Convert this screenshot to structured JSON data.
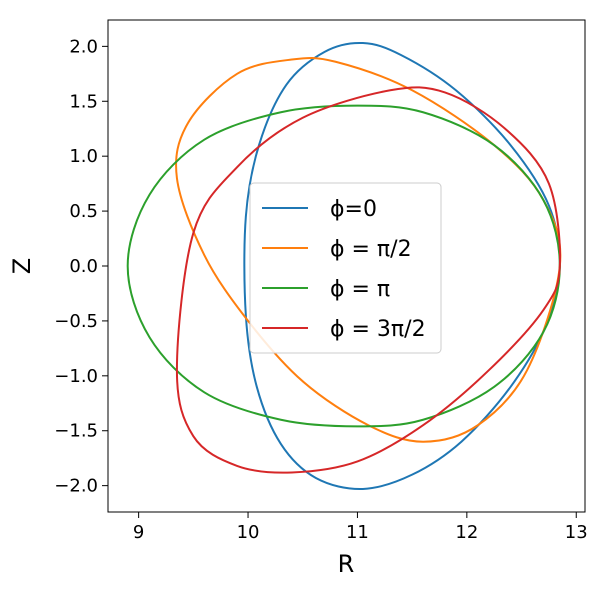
{
  "chart_data": {
    "type": "line",
    "title": "",
    "xlabel": "R",
    "ylabel": "Z",
    "xlim": [
      8.72,
      13.08
    ],
    "ylim": [
      -2.24,
      2.24
    ],
    "xticks": [
      9,
      10,
      11,
      12,
      13
    ],
    "xtick_labels": [
      "9",
      "10",
      "11",
      "12",
      "13"
    ],
    "yticks": [
      -2.0,
      -1.5,
      -1.0,
      -0.5,
      0.0,
      0.5,
      1.0,
      1.5,
      2.0
    ],
    "ytick_labels": [
      "−2.0",
      "−1.5",
      "−1.0",
      "−0.5",
      "0.0",
      "0.5",
      "1.0",
      "1.5",
      "2.0"
    ],
    "grid": false,
    "legend": {
      "position": "center",
      "entries": [
        "ϕ=0",
        "ϕ = π/2",
        "ϕ = π",
        "ϕ = 3π/2"
      ]
    },
    "series": [
      {
        "name": "ϕ=0",
        "color": "#1f77b4",
        "x": [
          12.85,
          12.75,
          12.4,
          11.9,
          11.4,
          11.05,
          10.7,
          10.35,
          10.1,
          9.98,
          9.98,
          10.08,
          10.3,
          10.62,
          11.05,
          11.5,
          11.95,
          12.4,
          12.72,
          12.85
        ],
        "y": [
          0.0,
          0.55,
          1.1,
          1.6,
          1.92,
          2.03,
          1.95,
          1.65,
          1.1,
          0.45,
          -0.45,
          -1.1,
          -1.62,
          -1.93,
          -2.03,
          -1.9,
          -1.6,
          -1.1,
          -0.55,
          0.0
        ]
      },
      {
        "name": "ϕ = π/2",
        "color": "#ff7f0e",
        "x": [
          12.85,
          12.7,
          12.25,
          11.5,
          10.8,
          10.4,
          9.9,
          9.45,
          9.35,
          9.6,
          10.0,
          10.5,
          11.1,
          11.6,
          12.1,
          12.55,
          12.85
        ],
        "y": [
          0.0,
          0.6,
          1.1,
          1.6,
          1.86,
          1.88,
          1.75,
          1.3,
          0.8,
          0.1,
          -0.5,
          -1.05,
          -1.45,
          -1.6,
          -1.45,
          -0.95,
          0.0
        ]
      },
      {
        "name": "ϕ = π",
        "color": "#2ca02c",
        "x": [
          12.85,
          12.7,
          12.25,
          11.6,
          11.0,
          10.3,
          9.6,
          9.1,
          8.9,
          9.1,
          9.6,
          10.3,
          11.0,
          11.6,
          12.25,
          12.7,
          12.85
        ],
        "y": [
          0.0,
          0.6,
          1.1,
          1.4,
          1.46,
          1.4,
          1.15,
          0.65,
          0.0,
          -0.65,
          -1.15,
          -1.4,
          -1.46,
          -1.4,
          -1.1,
          -0.6,
          0.0
        ]
      },
      {
        "name": "ϕ = 3π/2",
        "color": "#d62728",
        "x": [
          12.85,
          12.75,
          12.35,
          11.8,
          11.3,
          10.5,
          9.9,
          9.5,
          9.35,
          9.5,
          9.9,
          10.4,
          11.0,
          11.6,
          12.2,
          12.7,
          12.85
        ],
        "y": [
          0.0,
          0.75,
          1.25,
          1.58,
          1.6,
          1.35,
          0.9,
          0.3,
          -0.95,
          -1.55,
          -1.82,
          -1.88,
          -1.78,
          -1.45,
          -0.95,
          -0.4,
          0.0
        ]
      }
    ]
  }
}
